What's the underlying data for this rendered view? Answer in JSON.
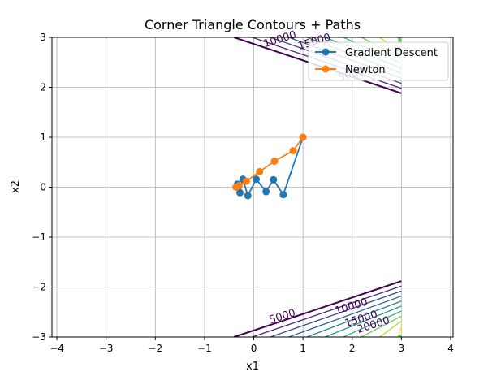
{
  "chart_data": {
    "type": "line",
    "title": "Corner Triangle Contours + Paths",
    "xlabel": "x1",
    "ylabel": "x2",
    "xlim": [
      -4.1,
      4.05
    ],
    "ylim": [
      -3,
      3
    ],
    "xticks": [
      -4,
      -3,
      -2,
      -1,
      0,
      1,
      2,
      3,
      4
    ],
    "yticks": [
      -3,
      -2,
      -1,
      0,
      1,
      2,
      3
    ],
    "xtick_labels": [
      "−4",
      "−3",
      "−2",
      "−1",
      "0",
      "1",
      "2",
      "3",
      "4"
    ],
    "ytick_labels": [
      "−3",
      "−2",
      "−1",
      "0",
      "1",
      "2",
      "3"
    ],
    "grid": true,
    "legend_position": "top-right",
    "series": [
      {
        "name": "Gradient Descent",
        "color": "#1f77b4",
        "x": [
          1.0,
          0.6,
          0.4,
          0.25,
          0.05,
          -0.12,
          -0.22,
          -0.28,
          -0.33,
          -0.35
        ],
        "y": [
          1.0,
          -0.15,
          0.15,
          -0.09,
          0.16,
          -0.17,
          0.16,
          -0.11,
          0.06,
          0.0
        ]
      },
      {
        "name": "Newton",
        "color": "#ff7f0e",
        "x": [
          1.0,
          0.8,
          0.42,
          0.12,
          -0.15,
          -0.3,
          -0.36
        ],
        "y": [
          1.0,
          0.73,
          0.52,
          0.31,
          0.12,
          0.03,
          0.0
        ]
      }
    ],
    "contour_labels": [
      {
        "text": "5000",
        "x": 0.6,
        "y": -2.65
      },
      {
        "text": "10000",
        "x": 2.0,
        "y": -2.45
      },
      {
        "text": "15000",
        "x": 2.2,
        "y": -2.7
      },
      {
        "text": "20000",
        "x": 2.45,
        "y": -2.82
      },
      {
        "text": "10000",
        "x": 0.55,
        "y": 2.9
      },
      {
        "text": "15000",
        "x": 1.25,
        "y": 2.85
      },
      {
        "text": "5000",
        "x": 2.0,
        "y": 2.2
      }
    ]
  }
}
